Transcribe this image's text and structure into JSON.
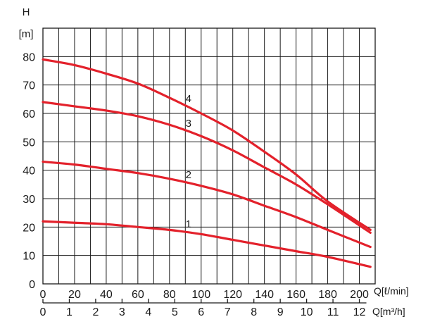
{
  "chart_data": {
    "type": "line",
    "ylabel": "H",
    "yunit": "[m]",
    "xlabel": "Q[ℓ/min]",
    "x2label": "Q[m³/h]",
    "xlim": [
      0,
      210
    ],
    "ylim": [
      0,
      90
    ],
    "grid": true,
    "x_ticks": [
      0,
      20,
      40,
      60,
      80,
      100,
      120,
      140,
      160,
      180,
      200
    ],
    "y_ticks": [
      0,
      10,
      20,
      30,
      40,
      50,
      60,
      70,
      80
    ],
    "x2_ticks": [
      0,
      1,
      2,
      3,
      4,
      5,
      6,
      7,
      8,
      9,
      10,
      11,
      12
    ],
    "line_color": "#e3212b",
    "series": [
      {
        "name": "1",
        "x": [
          0,
          20,
          40,
          60,
          80,
          100,
          120,
          140,
          160,
          180,
          207
        ],
        "y": [
          22,
          21.5,
          21,
          20,
          19,
          17.5,
          15.5,
          13.5,
          11.5,
          9.5,
          6
        ]
      },
      {
        "name": "2",
        "x": [
          0,
          20,
          40,
          60,
          80,
          100,
          120,
          140,
          160,
          180,
          207
        ],
        "y": [
          43,
          42,
          40.5,
          39,
          37,
          34.5,
          31.5,
          27.5,
          23.5,
          19,
          13
        ]
      },
      {
        "name": "3",
        "x": [
          0,
          20,
          40,
          60,
          80,
          100,
          120,
          140,
          160,
          180,
          207
        ],
        "y": [
          64,
          62.5,
          61,
          59,
          56,
          52,
          47,
          41,
          35,
          28,
          18
        ]
      },
      {
        "name": "4",
        "x": [
          0,
          20,
          40,
          60,
          80,
          100,
          120,
          140,
          160,
          180,
          207
        ],
        "y": [
          79,
          77,
          74,
          70.5,
          65.5,
          60,
          54,
          46.5,
          38.5,
          29,
          19
        ]
      }
    ]
  }
}
